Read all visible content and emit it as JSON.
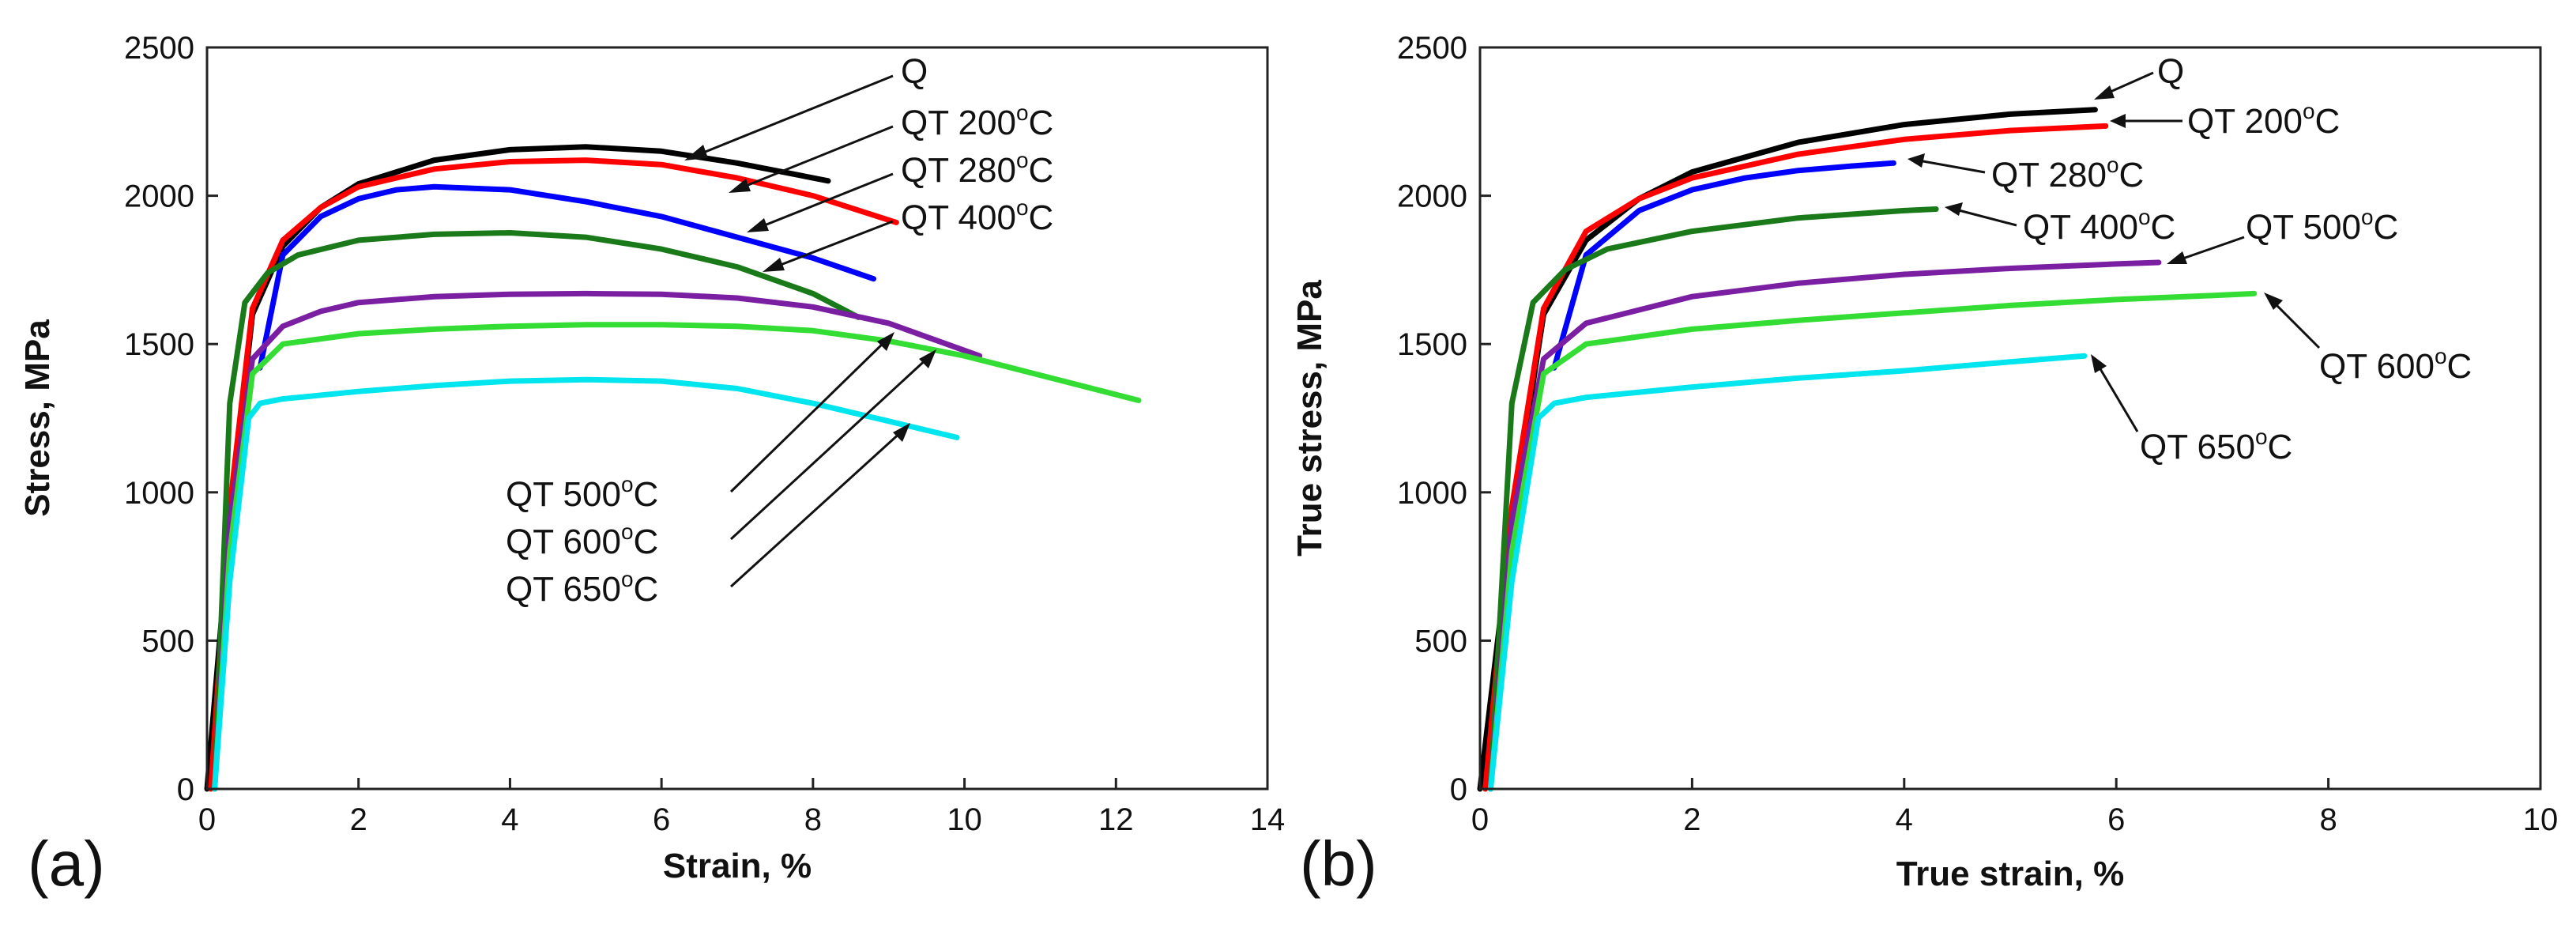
{
  "chart_data": [
    {
      "type": "line",
      "panel_label": "(a)",
      "title": "",
      "xlabel": "Strain, %",
      "ylabel": "Stress, MPa",
      "xlim": [
        0,
        14
      ],
      "ylim": [
        0,
        2500
      ],
      "xticks": [
        0,
        2,
        4,
        6,
        8,
        10,
        12,
        14
      ],
      "yticks": [
        0,
        500,
        1000,
        1500,
        2000,
        2500
      ],
      "grid": false,
      "series": [
        {
          "name": "Q",
          "color": "#000000",
          "x": [
            0,
            0.3,
            0.6,
            1.0,
            1.5,
            2.0,
            3.0,
            4.0,
            5.0,
            6.0,
            7.0,
            8.2
          ],
          "y": [
            0,
            900,
            1600,
            1830,
            1960,
            2040,
            2120,
            2155,
            2165,
            2150,
            2110,
            2050
          ]
        },
        {
          "name": "QT 200°C",
          "color": "#ff0000",
          "x": [
            0.05,
            0.3,
            0.6,
            1.0,
            1.5,
            2.0,
            3.0,
            4.0,
            5.0,
            6.0,
            7.0,
            8.0,
            9.1
          ],
          "y": [
            0,
            950,
            1620,
            1850,
            1960,
            2030,
            2090,
            2115,
            2120,
            2105,
            2060,
            2000,
            1910
          ]
        },
        {
          "name": "QT 280°C",
          "color": "#0000ff",
          "x": [
            0.7,
            1.0,
            1.5,
            2.0,
            2.5,
            3.0,
            4.0,
            5.0,
            6.0,
            7.0,
            8.0,
            8.8
          ],
          "y": [
            1420,
            1800,
            1930,
            1990,
            2020,
            2030,
            2020,
            1980,
            1930,
            1860,
            1790,
            1720
          ]
        },
        {
          "name": "QT 400°C",
          "color": "#1a7a1a",
          "x": [
            0.1,
            0.3,
            0.5,
            0.8,
            1.2,
            2.0,
            3.0,
            4.0,
            5.0,
            6.0,
            7.0,
            8.0,
            8.6
          ],
          "y": [
            0,
            1300,
            1640,
            1740,
            1800,
            1850,
            1870,
            1875,
            1860,
            1820,
            1760,
            1670,
            1590
          ]
        },
        {
          "name": "QT 500°C",
          "color": "#7b1fa2",
          "x": [
            0.1,
            0.3,
            0.6,
            1.0,
            1.5,
            2.0,
            3.0,
            4.0,
            5.0,
            6.0,
            7.0,
            8.0,
            9.0,
            10.2
          ],
          "y": [
            0,
            900,
            1450,
            1560,
            1610,
            1640,
            1660,
            1668,
            1670,
            1668,
            1655,
            1625,
            1570,
            1460
          ]
        },
        {
          "name": "QT 600°C",
          "color": "#33dd33",
          "x": [
            0.1,
            0.3,
            0.6,
            1.0,
            2.0,
            3.0,
            4.0,
            5.0,
            6.0,
            7.0,
            8.0,
            9.0,
            10.0,
            11.0,
            12.3
          ],
          "y": [
            0,
            800,
            1400,
            1500,
            1535,
            1550,
            1560,
            1565,
            1565,
            1560,
            1545,
            1510,
            1460,
            1395,
            1310
          ]
        },
        {
          "name": "QT 650°C",
          "color": "#00e5ee",
          "x": [
            0.1,
            0.3,
            0.55,
            0.7,
            1.0,
            2.0,
            3.0,
            4.0,
            5.0,
            6.0,
            7.0,
            8.0,
            9.0,
            9.9
          ],
          "y": [
            0,
            700,
            1250,
            1300,
            1315,
            1340,
            1360,
            1375,
            1380,
            1375,
            1350,
            1300,
            1240,
            1185
          ]
        }
      ],
      "annotations": [
        {
          "text": "Q"
        },
        {
          "text": "QT 200",
          "sup": "o",
          "unit": "C"
        },
        {
          "text": "QT 280",
          "sup": "o",
          "unit": "C"
        },
        {
          "text": "QT 400",
          "sup": "o",
          "unit": "C"
        },
        {
          "text": "QT 500",
          "sup": "o",
          "unit": "C"
        },
        {
          "text": "QT 600",
          "sup": "o",
          "unit": "C"
        },
        {
          "text": "QT 650",
          "sup": "o",
          "unit": "C"
        }
      ]
    },
    {
      "type": "line",
      "panel_label": "(b)",
      "title": "",
      "xlabel": "True strain, %",
      "ylabel": "True stress, MPa",
      "xlim": [
        0,
        10
      ],
      "ylim": [
        0,
        2500
      ],
      "xticks": [
        0,
        2,
        4,
        6,
        8,
        10
      ],
      "yticks": [
        0,
        500,
        1000,
        1500,
        2000,
        2500
      ],
      "grid": false,
      "series": [
        {
          "name": "Q",
          "color": "#000000",
          "x": [
            0,
            0.3,
            0.6,
            1.0,
            1.5,
            2.0,
            3.0,
            4.0,
            5.0,
            5.8
          ],
          "y": [
            0,
            900,
            1600,
            1850,
            1990,
            2080,
            2180,
            2240,
            2275,
            2290
          ]
        },
        {
          "name": "QT 200°C",
          "color": "#ff0000",
          "x": [
            0.05,
            0.3,
            0.6,
            1.0,
            1.5,
            2.0,
            3.0,
            4.0,
            5.0,
            5.9
          ],
          "y": [
            0,
            950,
            1620,
            1880,
            1990,
            2060,
            2140,
            2190,
            2220,
            2235
          ]
        },
        {
          "name": "QT 280°C",
          "color": "#0000ff",
          "x": [
            0.7,
            1.0,
            1.5,
            2.0,
            2.5,
            3.0,
            3.5,
            3.9
          ],
          "y": [
            1420,
            1800,
            1950,
            2020,
            2060,
            2085,
            2100,
            2110
          ]
        },
        {
          "name": "QT 400°C",
          "color": "#1a7a1a",
          "x": [
            0.1,
            0.3,
            0.5,
            0.8,
            1.2,
            2.0,
            3.0,
            4.0,
            4.3
          ],
          "y": [
            0,
            1300,
            1640,
            1750,
            1820,
            1880,
            1925,
            1950,
            1955
          ]
        },
        {
          "name": "QT 500°C",
          "color": "#7b1fa2",
          "x": [
            0.1,
            0.3,
            0.6,
            1.0,
            2.0,
            3.0,
            4.0,
            5.0,
            6.0,
            6.4
          ],
          "y": [
            0,
            900,
            1450,
            1570,
            1660,
            1705,
            1735,
            1755,
            1770,
            1775
          ]
        },
        {
          "name": "QT 600°C",
          "color": "#33dd33",
          "x": [
            0.1,
            0.3,
            0.6,
            1.0,
            2.0,
            3.0,
            4.0,
            5.0,
            6.0,
            7.0,
            7.3
          ],
          "y": [
            0,
            800,
            1400,
            1500,
            1550,
            1580,
            1605,
            1630,
            1650,
            1665,
            1670
          ]
        },
        {
          "name": "QT 650°C",
          "color": "#00e5ee",
          "x": [
            0.1,
            0.3,
            0.55,
            0.7,
            1.0,
            2.0,
            3.0,
            4.0,
            5.0,
            5.7
          ],
          "y": [
            0,
            700,
            1250,
            1300,
            1320,
            1355,
            1385,
            1410,
            1440,
            1460
          ]
        }
      ],
      "annotations": [
        {
          "text": "Q"
        },
        {
          "text": "QT 200",
          "sup": "o",
          "unit": "C"
        },
        {
          "text": "QT 280",
          "sup": "o",
          "unit": "C"
        },
        {
          "text": "QT 400",
          "sup": "o",
          "unit": "C"
        },
        {
          "text": "QT 500",
          "sup": "o",
          "unit": "C"
        },
        {
          "text": "QT 600",
          "sup": "o",
          "unit": "C"
        },
        {
          "text": "QT 650",
          "sup": "o",
          "unit": "C"
        }
      ]
    }
  ]
}
